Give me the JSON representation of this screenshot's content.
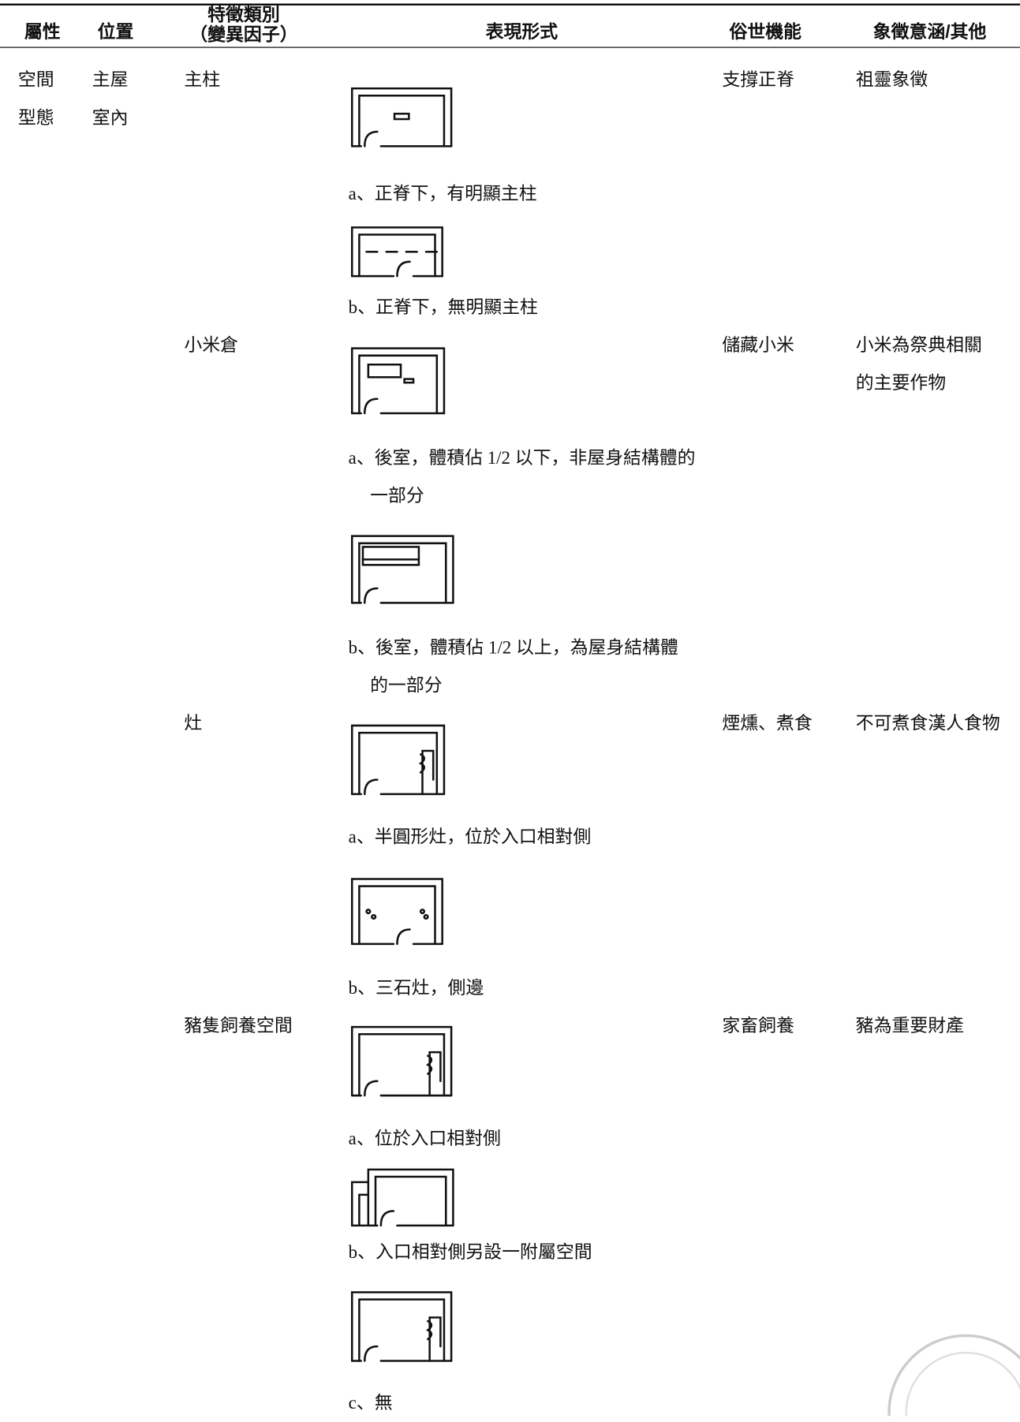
{
  "table": {
    "header": [
      "屬性",
      "位置",
      [
        "特徵類別",
        "（變異因子）"
      ],
      "表現形式",
      "俗世機能",
      "象徵意涵/其他"
    ],
    "attribute": [
      "空間",
      "型態"
    ],
    "position": [
      "主屋",
      "室內"
    ],
    "rows": [
      {
        "feature": "主柱",
        "function": "支撐正脊",
        "meaning": "祖靈象徵",
        "variants": [
          "a、正脊下，有明顯主柱",
          "b、正脊下，無明顯主柱"
        ]
      },
      {
        "feature": "小米倉",
        "function": "儲藏小米",
        "meaning": "小米為祭典相關的主要作物",
        "variants": [
          "a、後室，體積佔 1/2 以下，非屋身結構體的一部分",
          "b、後室，體積佔 1/2 以上，為屋身結構體的一部分"
        ]
      },
      {
        "feature": "灶",
        "function": "煙燻、煮食",
        "meaning": "不可煮食漢人食物",
        "variants": [
          "a、半圓形灶，位於入口相對側",
          "b、三石灶，側邊"
        ]
      },
      {
        "feature": "豬隻飼養空間",
        "function": "家畜飼養",
        "meaning": "豬為重要財產",
        "variants": [
          "a、位於入口相對側",
          "b、入口相對側另設一附屬空間",
          "c、無"
        ]
      }
    ]
  }
}
